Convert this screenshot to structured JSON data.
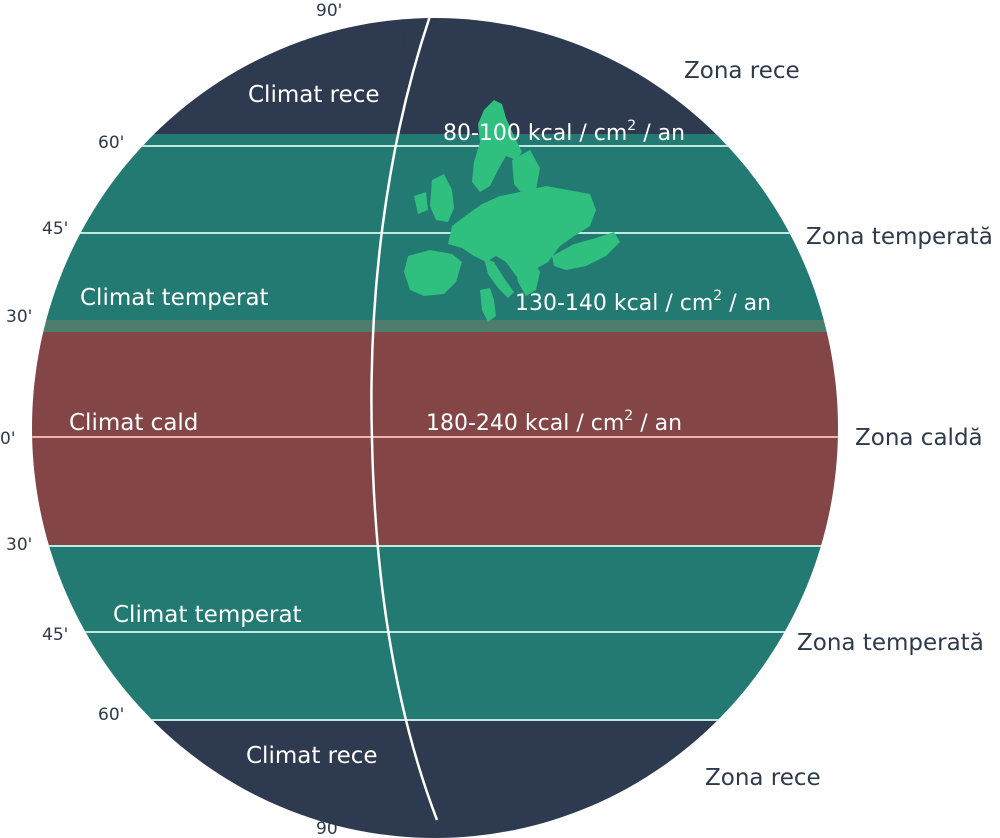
{
  "colors": {
    "cold": "#2d3a4f",
    "temperate": "#237a73",
    "warm": "#834546",
    "band_line": "#bfe8df",
    "equator_line": "#f2b3a8",
    "meridian_line": "#ffffff",
    "europe": "#2fbf7f",
    "transition": "#4c7d6d",
    "text_dark": "#2d3a4c",
    "text_light": "#ffffff"
  },
  "latitude_labels": {
    "top_90": "90'",
    "north_60": "60'",
    "north_45": "45'",
    "north_30": "30'",
    "equator": "0'",
    "south_30": "30'",
    "south_45": "45'",
    "south_60": "60'",
    "bottom_90": "90'",
    "meridian_0": "0'"
  },
  "zones": {
    "north_cold": "Zona rece",
    "north_temperate": "Zona temperată",
    "warm": "Zona caldă",
    "south_temperate": "Zona temperată",
    "south_cold": "Zona rece"
  },
  "climates": {
    "north_cold": "Climat rece",
    "north_temperate": "Climat temperat",
    "warm": "Climat cald",
    "south_temperate": "Climat temperat",
    "south_cold": "Climat rece"
  },
  "radiation": {
    "cold": {
      "value": "80-100 kcal / cm",
      "exp": "2",
      "unit": " / an"
    },
    "temperate": {
      "value": "130-140 kcal / cm",
      "exp": "2",
      "unit": " / an"
    },
    "warm": {
      "value": "180-240 kcal / cm",
      "exp": "2",
      "unit": " / an"
    }
  },
  "map_icon": "europe-map"
}
